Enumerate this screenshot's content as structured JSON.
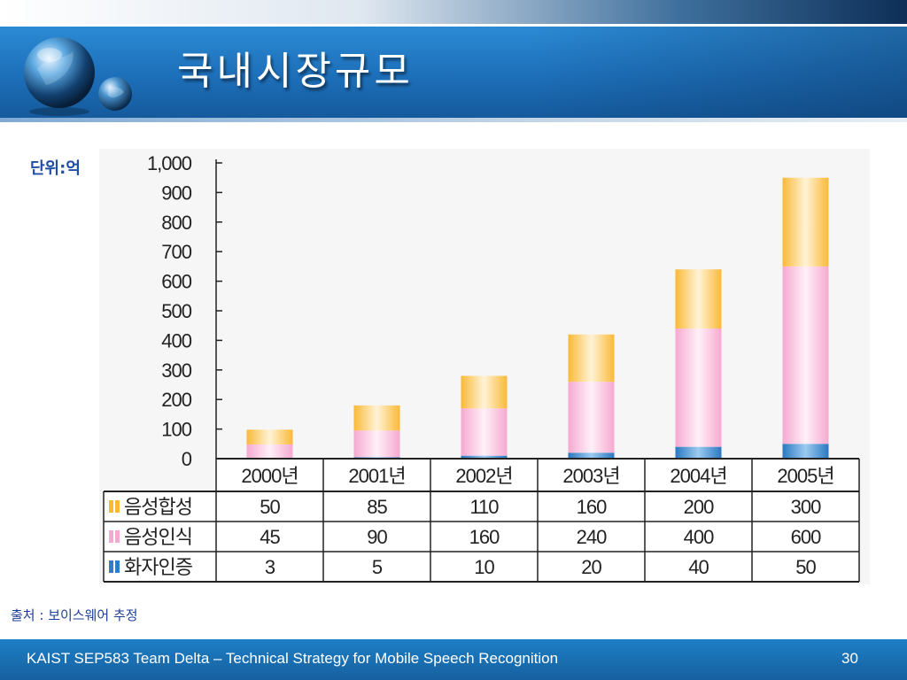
{
  "slide": {
    "title": "국내시장규모",
    "unit_label": "단위:억",
    "source": "출처 : 보이스웨어 추정",
    "footer_text": "KAIST SEP583 Team Delta  – Technical Strategy for Mobile Speech Recognition",
    "page_number": "30"
  },
  "colors": {
    "synthesis": "#f9b937",
    "recognition": "#f6a9d0",
    "verification": "#2f7fc8"
  },
  "chart_data": {
    "type": "bar",
    "stacked": true,
    "categories": [
      "2000년",
      "2001년",
      "2002년",
      "2003년",
      "2004년",
      "2005년"
    ],
    "series": [
      {
        "name": "화자인증",
        "values": [
          3,
          5,
          10,
          20,
          40,
          50
        ]
      },
      {
        "name": "음성인식",
        "values": [
          45,
          90,
          160,
          240,
          400,
          600
        ]
      },
      {
        "name": "음성합성",
        "values": [
          50,
          85,
          110,
          160,
          200,
          300
        ]
      }
    ],
    "ylim": [
      0,
      1000
    ],
    "yticks": [
      0,
      100,
      200,
      300,
      400,
      500,
      600,
      700,
      800,
      900,
      1000
    ],
    "ytick_labels": [
      "0",
      "100",
      "200",
      "300",
      "400",
      "500",
      "600",
      "700",
      "800",
      "900",
      "1,000"
    ],
    "table_rows": [
      {
        "label": "음성합성",
        "series": "음성합성",
        "values": [
          "50",
          "85",
          "110",
          "160",
          "200",
          "300"
        ]
      },
      {
        "label": "음성인식",
        "series": "음성인식",
        "values": [
          "45",
          "90",
          "160",
          "240",
          "400",
          "600"
        ]
      },
      {
        "label": "화자인증",
        "series": "화자인증",
        "values": [
          "3",
          "5",
          "10",
          "20",
          "40",
          "50"
        ]
      }
    ],
    "grid": false,
    "legend": "table"
  }
}
